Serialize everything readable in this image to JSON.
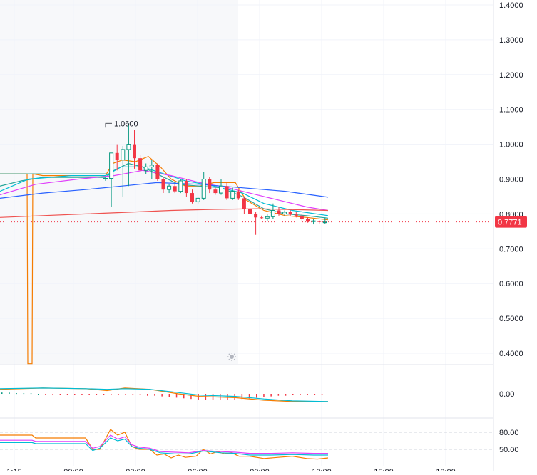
{
  "chart_data": {
    "type": "candlestick",
    "price_axis": {
      "ticks": [
        "1.4000",
        "1.3000",
        "1.2000",
        "1.1000",
        "1.0000",
        "0.9000",
        "0.8000",
        "0.7000",
        "0.6000",
        "0.5000",
        "0.4000"
      ],
      "ylim": [
        0.37,
        1.41
      ]
    },
    "last_price": {
      "label": "0.7771",
      "value": 0.7771,
      "color": "#f23645"
    },
    "high_annotation": {
      "label": "1.0600",
      "value": 1.06
    },
    "colors": {
      "up": "#089981",
      "down": "#f23645",
      "ma_orange": "#f57c00",
      "ma_green": "#26a69a",
      "ma_cyan": "#00bcd4",
      "ma_pink": "#e040fb",
      "ma_blue": "#2962ff",
      "ma_red": "#ef5350"
    },
    "candles": [
      {
        "o": 0.9,
        "h": 0.905,
        "l": 0.895,
        "c": 0.902
      },
      {
        "o": 0.902,
        "h": 0.975,
        "l": 0.82,
        "c": 0.975
      },
      {
        "o": 0.975,
        "h": 1.0,
        "l": 0.925,
        "c": 0.955
      },
      {
        "o": 0.955,
        "h": 0.995,
        "l": 0.85,
        "c": 0.985
      },
      {
        "o": 0.985,
        "h": 1.06,
        "l": 0.88,
        "c": 1.0
      },
      {
        "o": 1.0,
        "h": 1.04,
        "l": 0.93,
        "c": 0.96
      },
      {
        "o": 0.96,
        "h": 0.97,
        "l": 0.92,
        "c": 0.925
      },
      {
        "o": 0.925,
        "h": 0.945,
        "l": 0.915,
        "c": 0.935
      },
      {
        "o": 0.935,
        "h": 0.955,
        "l": 0.9,
        "c": 0.94
      },
      {
        "o": 0.94,
        "h": 0.945,
        "l": 0.895,
        "c": 0.9
      },
      {
        "o": 0.9,
        "h": 0.905,
        "l": 0.86,
        "c": 0.87
      },
      {
        "o": 0.87,
        "h": 0.885,
        "l": 0.86,
        "c": 0.88
      },
      {
        "o": 0.88,
        "h": 0.885,
        "l": 0.86,
        "c": 0.865
      },
      {
        "o": 0.865,
        "h": 0.9,
        "l": 0.86,
        "c": 0.895
      },
      {
        "o": 0.895,
        "h": 0.9,
        "l": 0.85,
        "c": 0.86
      },
      {
        "o": 0.86,
        "h": 0.87,
        "l": 0.83,
        "c": 0.835
      },
      {
        "o": 0.835,
        "h": 0.85,
        "l": 0.83,
        "c": 0.845
      },
      {
        "o": 0.845,
        "h": 0.92,
        "l": 0.84,
        "c": 0.9
      },
      {
        "o": 0.9,
        "h": 0.905,
        "l": 0.86,
        "c": 0.87
      },
      {
        "o": 0.87,
        "h": 0.875,
        "l": 0.855,
        "c": 0.86
      },
      {
        "o": 0.86,
        "h": 0.9,
        "l": 0.855,
        "c": 0.88
      },
      {
        "o": 0.88,
        "h": 0.89,
        "l": 0.84,
        "c": 0.845
      },
      {
        "o": 0.845,
        "h": 0.875,
        "l": 0.84,
        "c": 0.865
      },
      {
        "o": 0.865,
        "h": 0.87,
        "l": 0.84,
        "c": 0.845
      },
      {
        "o": 0.845,
        "h": 0.85,
        "l": 0.8,
        "c": 0.815
      },
      {
        "o": 0.815,
        "h": 0.82,
        "l": 0.795,
        "c": 0.8
      },
      {
        "o": 0.8,
        "h": 0.805,
        "l": 0.74,
        "c": 0.79
      },
      {
        "o": 0.79,
        "h": 0.795,
        "l": 0.785,
        "c": 0.788
      },
      {
        "o": 0.788,
        "h": 0.8,
        "l": 0.78,
        "c": 0.792
      },
      {
        "o": 0.792,
        "h": 0.83,
        "l": 0.785,
        "c": 0.81
      },
      {
        "o": 0.81,
        "h": 0.82,
        "l": 0.795,
        "c": 0.8
      },
      {
        "o": 0.8,
        "h": 0.81,
        "l": 0.795,
        "c": 0.805
      },
      {
        "o": 0.805,
        "h": 0.81,
        "l": 0.795,
        "c": 0.798
      },
      {
        "o": 0.798,
        "h": 0.805,
        "l": 0.79,
        "c": 0.795
      },
      {
        "o": 0.795,
        "h": 0.8,
        "l": 0.78,
        "c": 0.785
      },
      {
        "o": 0.785,
        "h": 0.79,
        "l": 0.775,
        "c": 0.778
      },
      {
        "o": 0.778,
        "h": 0.785,
        "l": 0.77,
        "c": 0.78
      },
      {
        "o": 0.78,
        "h": 0.782,
        "l": 0.772,
        "c": 0.777
      },
      {
        "o": 0.777,
        "h": 0.79,
        "l": 0.772,
        "c": 0.777
      }
    ],
    "moving_averages": [
      {
        "color": "#f57c00",
        "points": [
          [
            0,
            0.915
          ],
          [
            10,
            0.915
          ],
          [
            20,
            0.915
          ],
          [
            34,
            0.915
          ],
          [
            38,
            0.915
          ],
          [
            39,
            0.37
          ],
          [
            45,
            0.37
          ],
          [
            46,
            0.915
          ],
          [
            60,
            0.91
          ],
          [
            148,
            0.91
          ],
          [
            158,
            0.945
          ],
          [
            172,
            0.955
          ],
          [
            190,
            0.95
          ],
          [
            208,
            0.965
          ],
          [
            225,
            0.935
          ],
          [
            240,
            0.9
          ],
          [
            260,
            0.88
          ],
          [
            280,
            0.88
          ],
          [
            300,
            0.89
          ],
          [
            330,
            0.89
          ],
          [
            345,
            0.84
          ],
          [
            370,
            0.81
          ],
          [
            400,
            0.795
          ],
          [
            430,
            0.79
          ],
          [
            460,
            0.783
          ]
        ]
      },
      {
        "color": "#26a69a",
        "points": [
          [
            0,
            0.88
          ],
          [
            30,
            0.895
          ],
          [
            60,
            0.905
          ],
          [
            148,
            0.905
          ],
          [
            160,
            0.925
          ],
          [
            180,
            0.945
          ],
          [
            200,
            0.935
          ],
          [
            225,
            0.91
          ],
          [
            250,
            0.885
          ],
          [
            280,
            0.88
          ],
          [
            310,
            0.875
          ],
          [
            340,
            0.85
          ],
          [
            370,
            0.815
          ],
          [
            400,
            0.8
          ],
          [
            430,
            0.795
          ],
          [
            460,
            0.788
          ]
        ]
      },
      {
        "color": "#00bcd4",
        "points": [
          [
            0,
            0.865
          ],
          [
            40,
            0.9
          ],
          [
            100,
            0.91
          ],
          [
            148,
            0.91
          ],
          [
            170,
            0.935
          ],
          [
            200,
            0.935
          ],
          [
            230,
            0.915
          ],
          [
            260,
            0.895
          ],
          [
            300,
            0.88
          ],
          [
            340,
            0.86
          ],
          [
            370,
            0.83
          ],
          [
            410,
            0.81
          ],
          [
            460,
            0.795
          ]
        ]
      },
      {
        "color": "#e040fb",
        "points": [
          [
            0,
            0.855
          ],
          [
            50,
            0.885
          ],
          [
            110,
            0.9
          ],
          [
            160,
            0.91
          ],
          [
            200,
            0.925
          ],
          [
            240,
            0.91
          ],
          [
            280,
            0.89
          ],
          [
            320,
            0.875
          ],
          [
            350,
            0.86
          ],
          [
            390,
            0.84
          ],
          [
            430,
            0.82
          ],
          [
            460,
            0.81
          ]
        ]
      },
      {
        "color": "#2962ff",
        "points": [
          [
            0,
            0.845
          ],
          [
            60,
            0.86
          ],
          [
            120,
            0.87
          ],
          [
            170,
            0.88
          ],
          [
            220,
            0.89
          ],
          [
            280,
            0.885
          ],
          [
            340,
            0.875
          ],
          [
            400,
            0.865
          ],
          [
            460,
            0.848
          ]
        ]
      },
      {
        "color": "#ef5350",
        "points": [
          [
            0,
            0.79
          ],
          [
            60,
            0.795
          ],
          [
            120,
            0.8
          ],
          [
            180,
            0.805
          ],
          [
            240,
            0.81
          ],
          [
            300,
            0.813
          ],
          [
            360,
            0.815
          ],
          [
            420,
            0.812
          ],
          [
            460,
            0.81
          ]
        ]
      }
    ],
    "macd_pane": {
      "zero_label": "0.00",
      "histogram": [
        2,
        2,
        1,
        1,
        1,
        0,
        -1,
        -1,
        -1,
        -1,
        -1,
        -1,
        -1,
        -1,
        -1,
        -1,
        -1,
        -1,
        -2,
        -2,
        -3,
        -3,
        -4,
        -5,
        -6,
        -7,
        -8,
        -9,
        -10,
        -10,
        -10,
        -9,
        -9,
        -8,
        -7,
        -6,
        -5,
        -4,
        -3,
        -3,
        -2,
        -2,
        -1,
        -1,
        -1
      ],
      "line1": [
        [
          0,
          7
        ],
        [
          60,
          9
        ],
        [
          120,
          8
        ],
        [
          150,
          5
        ],
        [
          175,
          9
        ],
        [
          210,
          7
        ],
        [
          250,
          0
        ],
        [
          280,
          -4
        ],
        [
          330,
          -6
        ],
        [
          370,
          -10
        ],
        [
          410,
          -12
        ],
        [
          460,
          -12
        ]
      ],
      "line2": [
        [
          0,
          8
        ],
        [
          60,
          9
        ],
        [
          120,
          8
        ],
        [
          150,
          7
        ],
        [
          175,
          8
        ],
        [
          210,
          7
        ],
        [
          250,
          2
        ],
        [
          280,
          -2
        ],
        [
          330,
          -4
        ],
        [
          370,
          -8
        ],
        [
          410,
          -11
        ],
        [
          460,
          -12
        ]
      ]
    },
    "rsi_pane": {
      "ticks": [
        "80.00",
        "50.00"
      ],
      "line_orange": [
        [
          0,
          75
        ],
        [
          45,
          75
        ],
        [
          50,
          70
        ],
        [
          120,
          70
        ],
        [
          130,
          50
        ],
        [
          140,
          50
        ],
        [
          155,
          85
        ],
        [
          165,
          75
        ],
        [
          175,
          80
        ],
        [
          185,
          55
        ],
        [
          195,
          50
        ],
        [
          210,
          50
        ],
        [
          220,
          40
        ],
        [
          230,
          42
        ],
        [
          240,
          35
        ],
        [
          250,
          40
        ],
        [
          260,
          36
        ],
        [
          275,
          38
        ],
        [
          285,
          50
        ],
        [
          295,
          42
        ],
        [
          305,
          46
        ],
        [
          315,
          42
        ],
        [
          325,
          44
        ],
        [
          335,
          38
        ],
        [
          350,
          38
        ],
        [
          370,
          34
        ],
        [
          390,
          36
        ],
        [
          410,
          38
        ],
        [
          430,
          34
        ],
        [
          445,
          33
        ],
        [
          460,
          35
        ]
      ],
      "line_blue": [
        [
          0,
          62
        ],
        [
          45,
          62
        ],
        [
          50,
          60
        ],
        [
          120,
          60
        ],
        [
          130,
          48
        ],
        [
          140,
          52
        ],
        [
          155,
          70
        ],
        [
          165,
          65
        ],
        [
          175,
          68
        ],
        [
          185,
          55
        ],
        [
          195,
          52
        ],
        [
          210,
          50
        ],
        [
          225,
          44
        ],
        [
          245,
          42
        ],
        [
          265,
          42
        ],
        [
          285,
          47
        ],
        [
          310,
          44
        ],
        [
          330,
          43
        ],
        [
          350,
          40
        ],
        [
          380,
          40
        ],
        [
          410,
          41
        ],
        [
          440,
          40
        ],
        [
          460,
          40
        ]
      ],
      "line_purple": [
        [
          0,
          66
        ],
        [
          45,
          66
        ],
        [
          50,
          64
        ],
        [
          120,
          64
        ],
        [
          130,
          52
        ],
        [
          140,
          55
        ],
        [
          155,
          75
        ],
        [
          165,
          68
        ],
        [
          175,
          72
        ],
        [
          185,
          58
        ],
        [
          195,
          54
        ],
        [
          210,
          52
        ],
        [
          225,
          46
        ],
        [
          245,
          45
        ],
        [
          265,
          44
        ],
        [
          285,
          48
        ],
        [
          310,
          46
        ],
        [
          330,
          45
        ],
        [
          350,
          43
        ],
        [
          380,
          43
        ],
        [
          410,
          44
        ],
        [
          440,
          43
        ],
        [
          460,
          43
        ]
      ]
    },
    "time_axis": {
      "labels": [
        "1:15",
        "00:00",
        "03:00",
        "06:00",
        "09:00",
        "12:00",
        "15:00",
        "18:00"
      ]
    }
  }
}
